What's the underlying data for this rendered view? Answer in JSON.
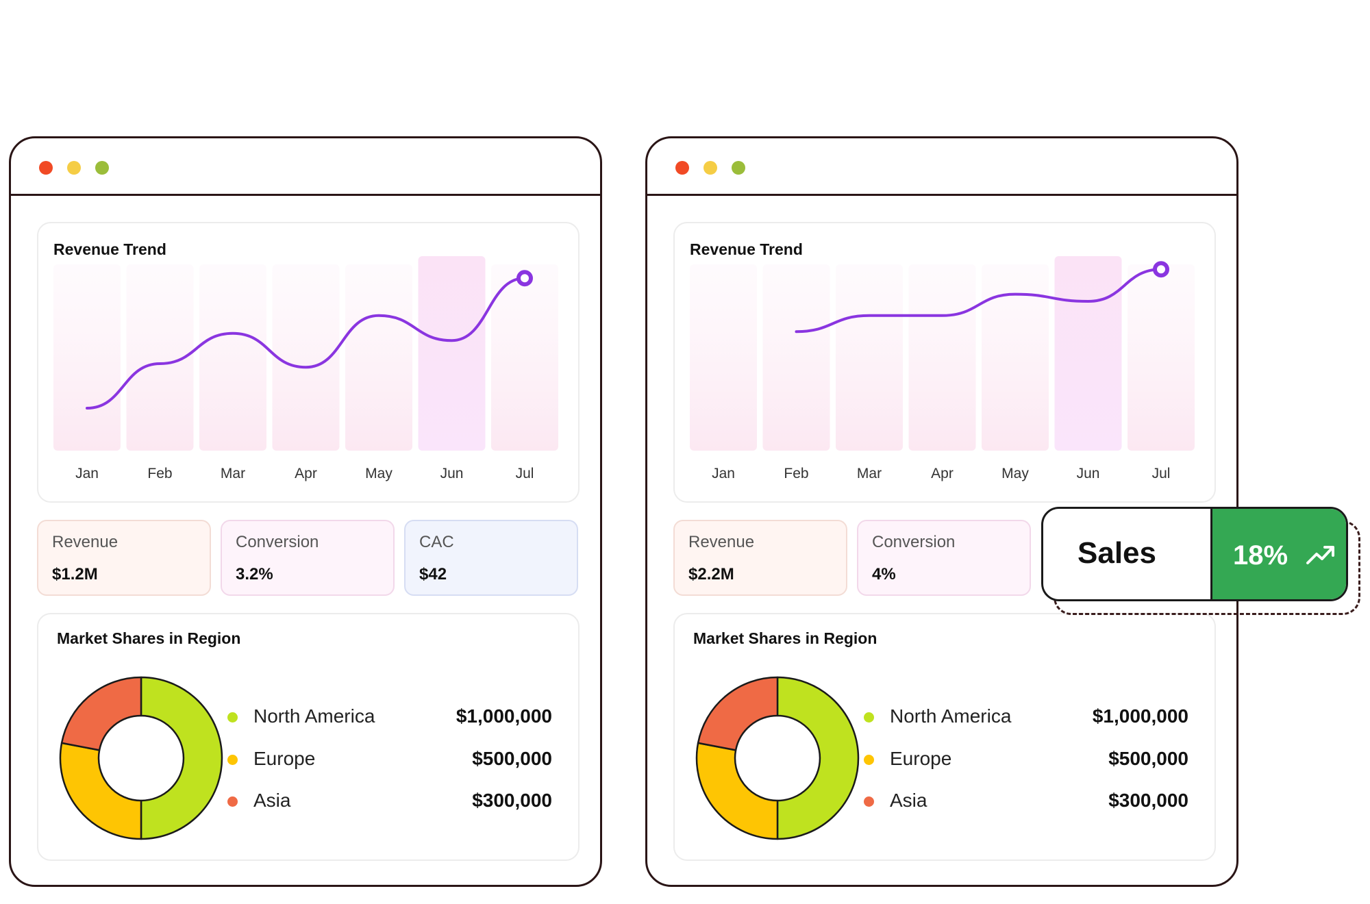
{
  "colors": {
    "dot_red": "#f14a25",
    "dot_yellow": "#f5cd45",
    "dot_green": "#9bbd3a",
    "line": "#8a35e0",
    "north_america": "#bfe21f",
    "europe": "#fec503",
    "asia": "#ef6a45",
    "sales_green": "#34a853"
  },
  "windows": [
    {
      "revenue_trend": {
        "title": "Revenue Trend",
        "chart_data": {
          "type": "line",
          "title": "Revenue Trend",
          "categories": [
            "Jan",
            "Feb",
            "Mar",
            "Apr",
            "May",
            "Jun",
            "Jul"
          ],
          "series": [
            {
              "values": [
                20,
                45,
                62,
                43,
                72,
                58,
                93
              ]
            }
          ],
          "highlight_category": "Jun",
          "ylim": [
            0,
            100
          ]
        }
      },
      "metrics": [
        {
          "label": "Revenue",
          "value": "$1.2M",
          "bg": "#fff5f2",
          "border": "#f3dcd5"
        },
        {
          "label": "Conversion",
          "value": "3.2%",
          "bg": "#fef4fb",
          "border": "#f2d8ea"
        },
        {
          "label": "CAC",
          "value": "$42",
          "bg": "#f1f4fd",
          "border": "#d6ddf3"
        }
      ],
      "market_shares": {
        "title": "Market Shares in Region",
        "legend": [
          {
            "label": "North America",
            "value": "$1,000,000"
          },
          {
            "label": "Europe",
            "value": "$500,000"
          },
          {
            "label": "Asia",
            "value": "$300,000"
          }
        ],
        "chart_data": {
          "type": "pie",
          "categories": [
            "North America",
            "Europe",
            "Asia"
          ],
          "values": [
            50,
            28,
            22
          ]
        }
      }
    },
    {
      "revenue_trend": {
        "title": "Revenue Trend",
        "chart_data": {
          "type": "line",
          "title": "Revenue Trend",
          "categories": [
            "Jan",
            "Feb",
            "Mar",
            "Apr",
            "May",
            "Jun",
            "Jul"
          ],
          "series": [
            {
              "values": [
                null,
                63,
                72,
                72,
                84,
                80,
                98
              ]
            }
          ],
          "highlight_category": "Jun",
          "ylim": [
            0,
            100
          ]
        }
      },
      "metrics": [
        {
          "label": "Revenue",
          "value": "$2.2M",
          "bg": "#fff5f2",
          "border": "#f3dcd5"
        },
        {
          "label": "Conversion",
          "value": "4%",
          "bg": "#fef4fb",
          "border": "#f2d8ea"
        }
      ],
      "market_shares": {
        "title": "Market Shares in Region",
        "legend": [
          {
            "label": "North America",
            "value": "$1,000,000"
          },
          {
            "label": "Europe",
            "value": "$500,000"
          },
          {
            "label": "Asia",
            "value": "$300,000"
          }
        ],
        "chart_data": {
          "type": "pie",
          "categories": [
            "North America",
            "Europe",
            "Asia"
          ],
          "values": [
            50,
            28,
            22
          ]
        }
      }
    }
  ],
  "sales_badge": {
    "label": "Sales",
    "percent": "18%",
    "icon": "trending-up-icon"
  }
}
